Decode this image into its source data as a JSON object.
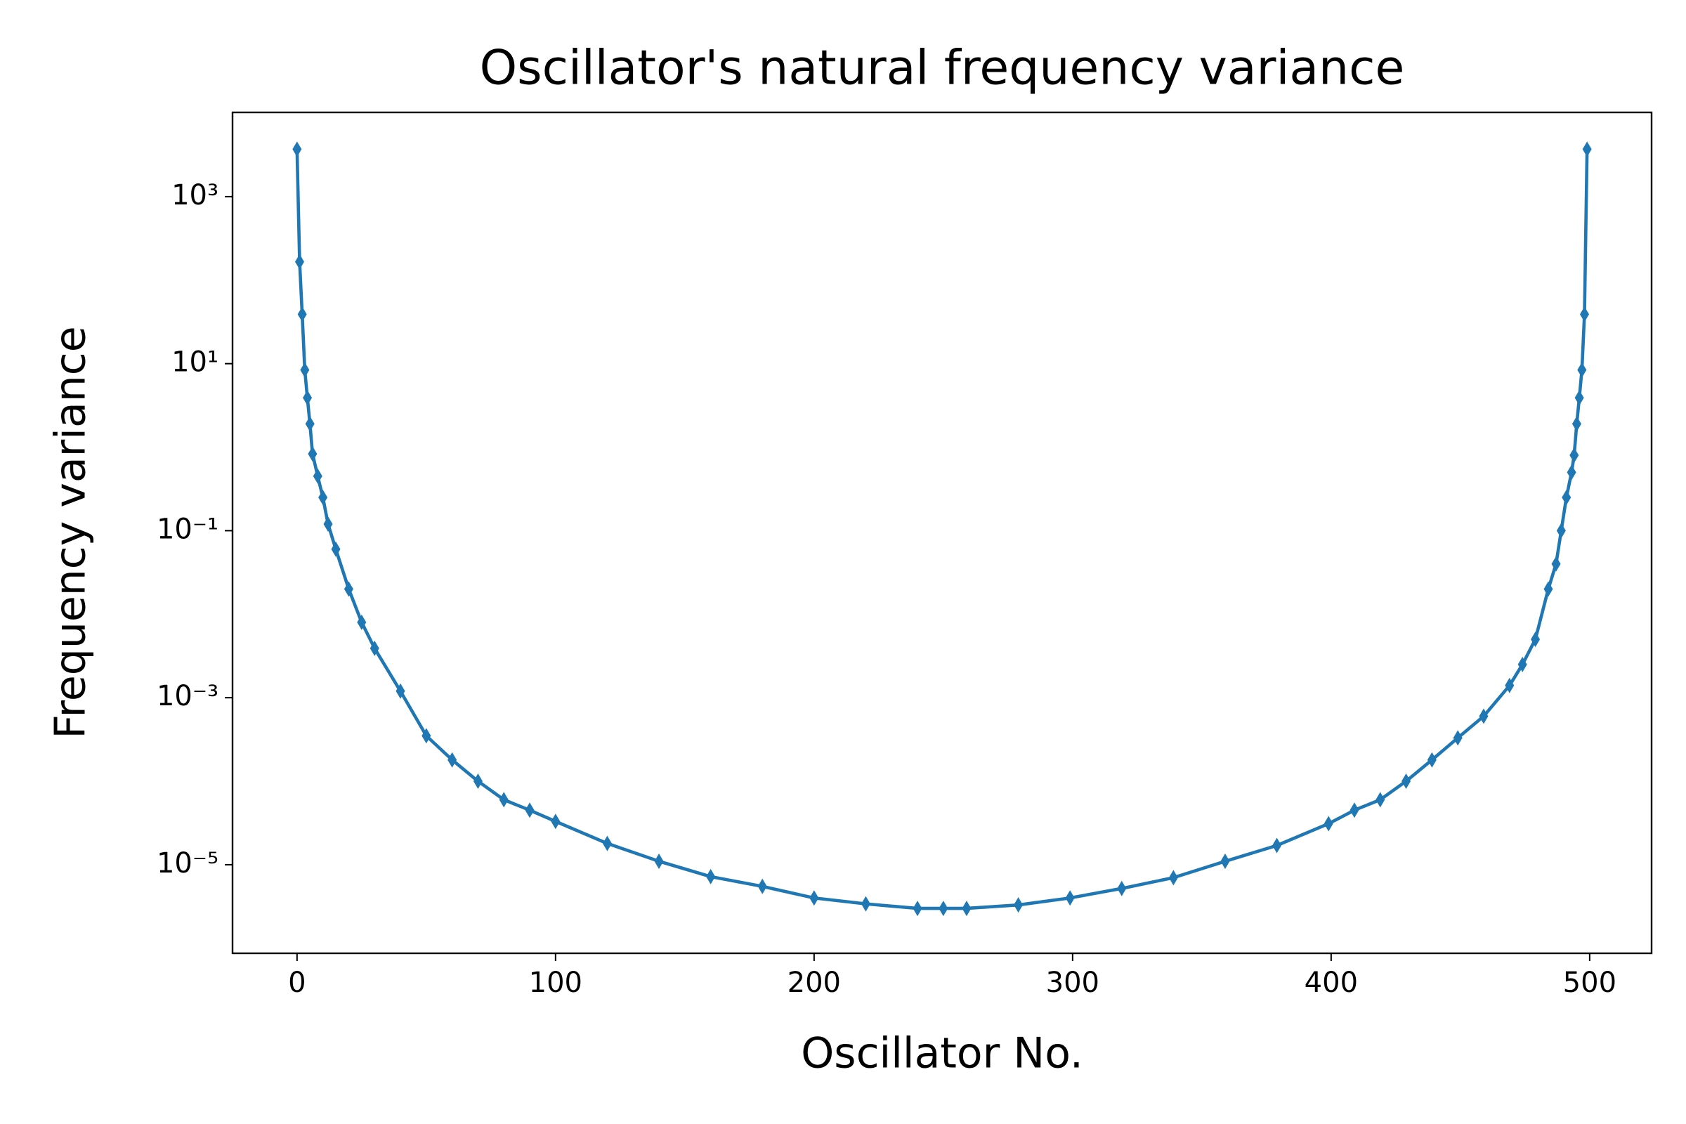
{
  "chart_data": {
    "type": "line",
    "title": "Oscillator's natural frequency variance",
    "x_label": "Oscillator No.",
    "y_label": "Frequency variance",
    "log_y": true,
    "x": [
      0,
      1,
      2,
      3,
      4,
      5,
      6,
      8,
      10,
      12,
      15,
      20,
      25,
      30,
      40,
      50,
      60,
      70,
      80,
      90,
      100,
      120,
      140,
      160,
      180,
      200,
      220,
      240,
      250,
      259,
      279,
      299,
      319,
      339,
      359,
      379,
      399,
      409,
      419,
      429,
      439,
      449,
      459,
      469,
      474,
      479,
      484,
      487,
      489,
      491,
      493,
      494,
      495,
      496,
      497,
      498,
      499
    ],
    "series": [
      {
        "name": "variance",
        "color": "#1f77b4",
        "marker": "thin-diamond",
        "values": [
          3700,
          166,
          39,
          8.4,
          3.9,
          1.9,
          0.83,
          0.45,
          0.25,
          0.12,
          0.06,
          0.02,
          0.008,
          0.0039,
          0.0012,
          0.00035,
          0.00018,
          0.0001,
          6e-05,
          4.5e-05,
          3.3e-05,
          1.8e-05,
          1.1e-05,
          7.2e-06,
          5.5e-06,
          4e-06,
          3.4e-06,
          3e-06,
          3e-06,
          3e-06,
          3.3e-06,
          4e-06,
          5.2e-06,
          7e-06,
          1.1e-05,
          1.7e-05,
          3.1e-05,
          4.5e-05,
          6e-05,
          0.0001,
          0.00018,
          0.00033,
          0.0006,
          0.0014,
          0.0025,
          0.005,
          0.02,
          0.04,
          0.1,
          0.25,
          0.5,
          0.8,
          1.9,
          3.9,
          8.4,
          39,
          3700
        ]
      }
    ],
    "xlim": [
      -24.95,
      523.95
    ],
    "ylim": [
      8.7e-07,
      10200
    ],
    "xticks": [
      0,
      100,
      200,
      300,
      400,
      500
    ],
    "yticks": [
      {
        "value": 1000,
        "label": "10³"
      },
      {
        "value": 10,
        "label": "10¹"
      },
      {
        "value": 0.1,
        "label": "10⁻¹"
      },
      {
        "value": 0.001,
        "label": "10⁻³"
      },
      {
        "value": 1e-05,
        "label": "10⁻⁵"
      }
    ]
  }
}
